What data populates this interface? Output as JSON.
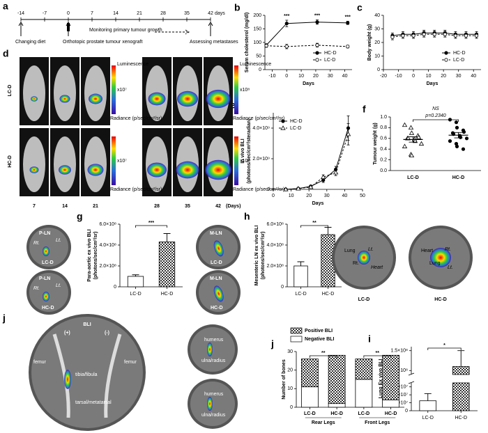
{
  "chart_data": [
    {
      "type": "line",
      "panel": "b",
      "ylabel": "Serum cholesterol (mg/dl)",
      "xlabel": "Days",
      "x": [
        -14,
        0,
        21,
        42
      ],
      "series": [
        {
          "name": "HC-D",
          "color": "#000",
          "marker": "filled-circle",
          "values": [
            90,
            170,
            175,
            172
          ],
          "errors": [
            5,
            12,
            8,
            6
          ]
        },
        {
          "name": "LC-D",
          "color": "#000",
          "marker": "open-circle",
          "dashed": true,
          "values": [
            88,
            85,
            90,
            85
          ],
          "errors": [
            6,
            8,
            7,
            5
          ]
        }
      ],
      "xlim": [
        -15,
        45
      ],
      "xticks": [
        -10,
        0,
        10,
        20,
        30,
        40
      ],
      "ylim": [
        0,
        200
      ],
      "yticks": [
        0,
        50,
        100,
        150,
        200
      ],
      "legend": "lower right",
      "annotations": [
        {
          "text": "***",
          "x": 0
        },
        {
          "text": "***",
          "x": 21
        },
        {
          "text": "***",
          "x": 42
        }
      ]
    },
    {
      "type": "line",
      "panel": "c",
      "ylabel": "Body weight (g)",
      "xlabel": "Days",
      "x": [
        -14,
        -7,
        0,
        7,
        14,
        21,
        28,
        35,
        42
      ],
      "series": [
        {
          "name": "HC-D",
          "color": "#000",
          "marker": "filled-circle",
          "values": [
            25,
            26,
            26,
            27,
            27,
            27,
            26,
            26,
            26
          ],
          "errors": [
            2,
            2,
            2,
            2,
            2,
            2,
            2,
            2,
            2
          ]
        },
        {
          "name": "LC-D",
          "color": "#000",
          "marker": "open-circle",
          "dashed": true,
          "values": [
            24,
            25,
            25,
            26,
            26,
            26,
            25,
            25,
            25
          ],
          "errors": [
            2,
            2,
            2,
            2,
            2,
            2,
            2,
            2,
            2
          ]
        }
      ],
      "xlim": [
        -20,
        45
      ],
      "xticks": [
        -20,
        -10,
        0,
        10,
        20,
        30,
        40
      ],
      "ylim": [
        0,
        40
      ],
      "yticks": [
        0,
        10,
        20,
        30,
        40
      ],
      "legend": "lower right"
    },
    {
      "type": "line",
      "panel": "e",
      "ylabel": [
        "In vivo BLI",
        "(photons/sec/cm²/steradian)"
      ],
      "xlabel": "Days",
      "x": [
        7,
        14,
        21,
        28,
        35,
        42
      ],
      "series": [
        {
          "name": "HC-D",
          "color": "#000",
          "marker": "filled-circle",
          "values": [
            0,
            50000000,
            200000000,
            600000000,
            1300000000,
            4000000000
          ],
          "errors": [
            0,
            20000000,
            50000000,
            150000000,
            200000000,
            800000000
          ]
        },
        {
          "name": "LC-D",
          "color": "#000",
          "marker": "open-triangle",
          "dashed": true,
          "values": [
            0,
            50000000,
            150000000,
            800000000,
            1100000000,
            3600000000
          ],
          "errors": [
            0,
            20000000,
            50000000,
            150000000,
            200000000,
            700000000
          ]
        }
      ],
      "xlim": [
        0,
        50
      ],
      "xticks": [
        0,
        10,
        20,
        30,
        40,
        50
      ],
      "ylim": [
        0,
        5000000000
      ],
      "yticks": [
        0,
        {
          "value": 2000000000,
          "label": "2.0×10⁹"
        },
        {
          "value": 4000000000,
          "label": "4.0×10⁹"
        }
      ],
      "legend": "upper left"
    },
    {
      "type": "dot",
      "panel": "f",
      "ylabel": "Tumour weight (g)",
      "categories": [
        "LC-D",
        "HC-D"
      ],
      "values": [
        [
          0.85,
          0.8,
          0.7,
          0.65,
          0.62,
          0.6,
          0.6,
          0.58,
          0.55,
          0.5,
          0.45,
          0.3,
          0.28
        ],
        [
          0.95,
          0.9,
          0.8,
          0.75,
          0.72,
          0.7,
          0.68,
          0.65,
          0.62,
          0.6,
          0.55,
          0.5,
          0.45,
          0.4
        ]
      ],
      "markers": [
        "open-triangle",
        "filled-circle"
      ],
      "means": [
        0.58,
        0.66
      ],
      "errors": [
        0.05,
        0.05
      ],
      "ylim": [
        0,
        1
      ],
      "yticks": [
        {
          "value": 0,
          "label": "0.0"
        },
        0.2,
        0.4,
        0.6,
        0.8,
        {
          "value": 1,
          "label": "1.0"
        }
      ],
      "annotations": [
        "NS",
        "p=0.2340"
      ]
    },
    {
      "type": "bar",
      "panel": "g",
      "ylabel": [
        "Para-aortic ex vivo BLI",
        "(photons/sec/cm²/sr)"
      ],
      "categories": [
        "LC-D",
        "HC-D"
      ],
      "values": [
        100000000,
        430000000
      ],
      "errors": [
        15000000,
        80000000
      ],
      "fills": [
        "white",
        "checker"
      ],
      "ylim": [
        0,
        600000000
      ],
      "yticks": [
        0,
        {
          "value": 200000000,
          "label": "2.0×10⁸"
        },
        {
          "value": 400000000,
          "label": "4.0×10⁸"
        },
        {
          "value": 600000000,
          "label": "6.0×10⁸"
        }
      ],
      "annotations": [
        "***"
      ]
    },
    {
      "type": "bar",
      "panel": "h",
      "ylabel": [
        "Mesenteric LN ex vivo BLI",
        "(photons/sec/cm²/sr)"
      ],
      "categories": [
        "LC-D",
        "HC-D"
      ],
      "values": [
        200000000,
        500000000
      ],
      "errors": [
        40000000,
        70000000
      ],
      "fills": [
        "white",
        "checker"
      ],
      "ylim": [
        0,
        600000000
      ],
      "yticks": [
        0,
        {
          "value": 200000000,
          "label": "2.0×10⁸"
        },
        {
          "value": 400000000,
          "label": "4.0×10⁸"
        },
        {
          "value": 600000000,
          "label": "6.0×10⁸"
        }
      ],
      "annotations": [
        "**"
      ]
    },
    {
      "type": "bar",
      "panel": "i",
      "ylabel": [
        "Lung Ex vivo BLI",
        "(photons/sec/cm²/sr)"
      ],
      "categories": [
        "LC-D",
        "HC-D"
      ],
      "values": [
        25000000,
        110000000
      ],
      "errors": [
        18000000,
        40000000
      ],
      "fills": [
        "white",
        "checker"
      ],
      "ylim": [
        0,
        160000000
      ],
      "ybreak": [
        70000000,
        90000000
      ],
      "yticks": [
        0,
        {
          "value": 20000000,
          "label": "2.0×10⁷"
        },
        {
          "value": 40000000,
          "label": "4.0×10⁷"
        },
        {
          "value": 60000000,
          "label": "6.0×10⁷"
        },
        {
          "value": 100000000,
          "label": "1.0×10⁸"
        },
        {
          "value": 150000000,
          "label": "1.5×10⁸"
        }
      ],
      "annotations": [
        "*"
      ]
    },
    {
      "type": "stacked_bar",
      "panel": "j",
      "ylabel": "Number of bones",
      "categories": [
        "LC-D",
        "HC-D",
        "LC-D",
        "HC-D"
      ],
      "groups": [
        "Rear Legs",
        "Front Legs"
      ],
      "series": [
        {
          "name": "Negative BLI",
          "fill": "white",
          "values": [
            11,
            2,
            15,
            4
          ]
        },
        {
          "name": "Positive BLI",
          "fill": "checker",
          "values": [
            15,
            26,
            11,
            24
          ]
        }
      ],
      "ylim": [
        0,
        30
      ],
      "yticks": [
        0,
        10,
        20,
        30
      ],
      "legend": "upper left",
      "annotations": [
        "**",
        "**"
      ]
    }
  ],
  "timeline": {
    "panel": "a",
    "ticks": [
      "-14",
      "-7",
      "0",
      "7",
      "14",
      "21",
      "28",
      "35",
      "42"
    ],
    "unit": "days",
    "events": [
      "Changing diet",
      "Orthotopic prostate tumour xenograft",
      "Assessing metastases"
    ],
    "monitoring": "Monitoring primary tumour growth"
  },
  "imaging": {
    "panel": "d",
    "rows": [
      "LC-D",
      "HC-D"
    ],
    "days": [
      "7",
      "14",
      "21",
      "28",
      "35",
      "42"
    ],
    "unit": "(Days)",
    "colorbar_title": "Luminescence",
    "colorbar_scales": [
      "x10⁷",
      "x10⁸"
    ],
    "colorbar_unit": "Radiance (p/sec/cm²/sr)"
  },
  "photos": {
    "g": [
      {
        "tissue": "P-LN",
        "labels": [
          "Rt.",
          "Lt."
        ],
        "group": "LC-D"
      },
      {
        "tissue": "P-LN",
        "labels": [
          "Rt.",
          "Lt."
        ],
        "group": "HC-D"
      }
    ],
    "h": [
      {
        "tissue": "M-LN",
        "group": "LC-D"
      },
      {
        "tissue": "M-LN",
        "group": "HC-D"
      }
    ],
    "i": [
      {
        "labels": [
          "Lung",
          "Lt.",
          "Rt.",
          "Heart"
        ],
        "group": "LC-D"
      },
      {
        "labels": [
          "Heart",
          "Rt.",
          "Lung",
          "Lt."
        ],
        "group": "HC-D"
      }
    ],
    "j": {
      "title": "BLI",
      "signs": [
        "(+)",
        "(-)"
      ],
      "bones": [
        "femur",
        "femur",
        "tibia/fibula",
        "tarsal/metatarsal"
      ],
      "front": [
        [
          "humerus",
          "ulna/radius"
        ],
        [
          "humerus",
          "ulna/radius"
        ]
      ]
    }
  }
}
